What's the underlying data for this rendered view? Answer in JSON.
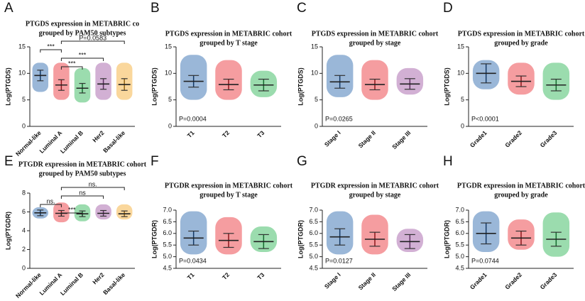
{
  "chart_data": [
    {
      "type": "dot",
      "letter": "A",
      "title": [
        "PTGDS expression in METABRIC co",
        "grouped by PAM50 subtypes"
      ],
      "ylabel": "Log(PTGDS)",
      "categories": [
        "Normal-like",
        "Luminal A",
        "Luminal B",
        "Her2",
        "Basal-like"
      ],
      "means": [
        9.6,
        7.8,
        7.2,
        8.0,
        7.9
      ],
      "sds": [
        1.0,
        1.0,
        0.9,
        1.0,
        1.1
      ],
      "mins": [
        6.5,
        5.0,
        4.5,
        5.0,
        5.0
      ],
      "maxs": [
        12,
        12,
        11,
        12,
        12
      ],
      "colors": [
        "#1f5fa8",
        "#e8262d",
        "#22b24c",
        "#9b4fa0",
        "#f5a623"
      ],
      "ylim": [
        0,
        15
      ],
      "yticks": [
        0,
        5,
        10,
        15
      ],
      "comparisons": [
        {
          "label": "P=0.0583",
          "between": [
            "Luminal A",
            "Basal-like"
          ]
        },
        {
          "label": "***",
          "between": [
            "Normal-like",
            "Luminal A"
          ]
        },
        {
          "label": "***",
          "between": [
            "Luminal A",
            "Her2"
          ]
        },
        {
          "label": "***",
          "between": [
            "Luminal A",
            "Luminal B"
          ]
        }
      ]
    },
    {
      "type": "dot",
      "letter": "B",
      "title": [
        "PTGDS expression in METABRIC cohort",
        "grouped by T stage"
      ],
      "ylabel": "Log(PTGDS)",
      "categories": [
        "T1",
        "T2",
        "T3"
      ],
      "means": [
        8.5,
        7.9,
        7.8
      ],
      "sds": [
        1.1,
        1.0,
        1.1
      ],
      "mins": [
        5.0,
        5.0,
        5.5
      ],
      "maxs": [
        13.5,
        12.5,
        10.5
      ],
      "colors": [
        "#1f5fa8",
        "#e8262d",
        "#22b24c"
      ],
      "ylim": [
        0,
        15
      ],
      "yticks": [
        0,
        5,
        10,
        15
      ],
      "annotation": "P=0.0004"
    },
    {
      "type": "dot",
      "letter": "C",
      "title": [
        "PTGDS expression in METABRIC cohort",
        "grouped by stage"
      ],
      "ylabel": "Log(PTGDS)",
      "categories": [
        "Stage I",
        "Stage II",
        "Stage III"
      ],
      "means": [
        8.4,
        7.9,
        8.0
      ],
      "sds": [
        1.2,
        1.0,
        1.0
      ],
      "mins": [
        5.5,
        5.0,
        6.0
      ],
      "maxs": [
        13.5,
        12.5,
        11
      ],
      "colors": [
        "#1f5fa8",
        "#e8262d",
        "#9b4fa0"
      ],
      "ylim": [
        0,
        15
      ],
      "yticks": [
        0,
        5,
        10,
        15
      ],
      "annotation": "P=0.0265"
    },
    {
      "type": "dot",
      "letter": "D",
      "title": [
        "PTGDS expression in METABRIC cohort",
        "grouped by grade"
      ],
      "ylabel": "Log(PTGDS)",
      "categories": [
        "Grade1",
        "Grade2",
        "Grade3"
      ],
      "means": [
        10.0,
        8.5,
        7.8
      ],
      "sds": [
        1.8,
        1.0,
        1.1
      ],
      "mins": [
        7.0,
        6.0,
        5.0
      ],
      "maxs": [
        12.5,
        12,
        12
      ],
      "colors": [
        "#1f5fa8",
        "#e8262d",
        "#22b24c"
      ],
      "ylim": [
        0,
        15
      ],
      "yticks": [
        0,
        5,
        10,
        15
      ],
      "annotation": "P<0.0001"
    },
    {
      "type": "dot",
      "letter": "E",
      "title": [
        "PTGDR expression in METABRIC cohort",
        "grouped by PAM50 subtypes"
      ],
      "ylabel": "Log(PTGDR)",
      "categories": [
        "Normal-like",
        "Luminal A",
        "Luminal B",
        "Her2",
        "Basal-like"
      ],
      "means": [
        5.9,
        5.85,
        5.8,
        5.85,
        5.8
      ],
      "sds": [
        0.3,
        0.3,
        0.3,
        0.3,
        0.3
      ],
      "mins": [
        5.3,
        4.9,
        5.0,
        5.2,
        5.2
      ],
      "maxs": [
        6.5,
        7.0,
        6.8,
        6.8,
        6.8
      ],
      "colors": [
        "#1f5fa8",
        "#e8262d",
        "#22b24c",
        "#9b4fa0",
        "#f5a623"
      ],
      "ylim": [
        0,
        8
      ],
      "yticks": [
        0,
        2,
        4,
        6,
        8
      ],
      "comparisons": [
        {
          "label": "ns.",
          "between": [
            "Luminal A",
            "Basal-like"
          ]
        },
        {
          "label": "ns",
          "between": [
            "Luminal A",
            "Her2"
          ]
        },
        {
          "label": "ns.",
          "between": [
            "Normal-like",
            "Luminal A"
          ]
        },
        {
          "label": "***",
          "between": [
            "Luminal A",
            "Luminal B"
          ]
        }
      ]
    },
    {
      "type": "dot",
      "letter": "F",
      "title": [
        "PTGDR expression in METABRIC cohort",
        "grouped by T stage"
      ],
      "ylabel": "Log(PTGDR)",
      "categories": [
        "T1",
        "T2",
        "T3"
      ],
      "means": [
        5.8,
        5.7,
        5.65
      ],
      "sds": [
        0.3,
        0.3,
        0.3
      ],
      "mins": [
        5.1,
        5.1,
        5.2
      ],
      "maxs": [
        6.95,
        6.7,
        6.3
      ],
      "colors": [
        "#1f5fa8",
        "#e8262d",
        "#22b24c"
      ],
      "ylim": [
        4.5,
        7.0
      ],
      "yticks": [
        4.5,
        {
          "value": 5,
          "label": "5.0"
        },
        5.5,
        {
          "value": 6,
          "label": "6.0"
        },
        6.5,
        {
          "value": 7,
          "label": "7.0"
        }
      ],
      "annotation": "P=0.0434"
    },
    {
      "type": "dot",
      "letter": "G",
      "title": [
        "PTGDR expression in METABRIC cohort",
        "grouped by stage"
      ],
      "ylabel": "Log(PTGDR)",
      "categories": [
        "Stage I",
        "Stage II",
        "Stage III"
      ],
      "means": [
        5.85,
        5.75,
        5.65
      ],
      "sds": [
        0.35,
        0.3,
        0.3
      ],
      "mins": [
        5.1,
        5.1,
        5.2
      ],
      "maxs": [
        6.95,
        6.8,
        6.2
      ],
      "colors": [
        "#1f5fa8",
        "#e8262d",
        "#9b4fa0"
      ],
      "ylim": [
        4.5,
        7.0
      ],
      "yticks": [
        4.5,
        {
          "value": 5,
          "label": "5.0"
        },
        5.5,
        {
          "value": 6,
          "label": "6.0"
        },
        6.5,
        {
          "value": 7,
          "label": "7.0"
        }
      ],
      "annotation": "P=0.0127"
    },
    {
      "type": "dot",
      "letter": "H",
      "title": [
        "PTGDR expression in METABRIC cohort",
        "grouped by grade"
      ],
      "ylabel": "Log(PTGDR)",
      "categories": [
        "Grade1",
        "Grade2",
        "Grade3"
      ],
      "means": [
        6.0,
        5.8,
        5.75
      ],
      "sds": [
        0.45,
        0.3,
        0.3
      ],
      "mins": [
        5.2,
        5.3,
        5.0
      ],
      "maxs": [
        6.95,
        6.6,
        6.9
      ],
      "colors": [
        "#1f5fa8",
        "#e8262d",
        "#22b24c"
      ],
      "ylim": [
        4.5,
        7.0
      ],
      "yticks": [
        4.5,
        {
          "value": 5,
          "label": "5.0"
        },
        5.5,
        {
          "value": 6,
          "label": "6.0"
        },
        6.5,
        {
          "value": 7,
          "label": "7.0"
        }
      ],
      "annotation": "P=0.0744"
    }
  ]
}
